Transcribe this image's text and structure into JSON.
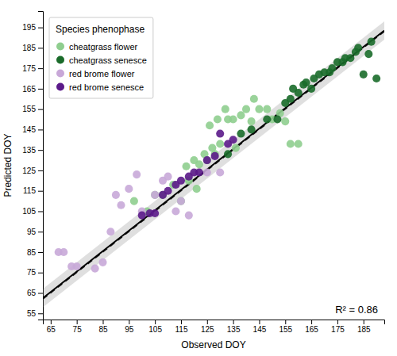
{
  "chart_data": {
    "type": "scatter",
    "title": "Species phenophase",
    "xlabel": "Observed DOY",
    "ylabel": "Predicted DOY",
    "xlim": [
      62,
      193
    ],
    "ylim": [
      52,
      203
    ],
    "xticks": [
      65,
      75,
      85,
      95,
      105,
      115,
      125,
      135,
      145,
      155,
      165,
      175,
      185
    ],
    "yticks": [
      55,
      65,
      75,
      85,
      95,
      105,
      115,
      125,
      135,
      145,
      155,
      165,
      175,
      185,
      195
    ],
    "grid": false,
    "legend": "upper left",
    "annotations": [
      "R² = 0.86"
    ],
    "series": [
      {
        "name": "cheatgrass flower",
        "type": "scatter",
        "marker": "circle",
        "color": "#8fce8f",
        "x": [
          97,
          102,
          105,
          108,
          112,
          115,
          117,
          118,
          120,
          121,
          122,
          124,
          125,
          126,
          127,
          128,
          129,
          130,
          132,
          133,
          135,
          136,
          138,
          140,
          142,
          143,
          145,
          148,
          150,
          153,
          155,
          157,
          160
        ],
        "values": [
          110,
          105,
          113,
          113,
          118,
          110,
          127,
          120,
          130,
          116,
          128,
          133,
          130,
          147,
          136,
          133,
          150,
          138,
          155,
          150,
          150,
          136,
          152,
          155,
          149,
          160,
          155,
          155,
          150,
          153,
          149,
          138,
          138
        ]
      },
      {
        "name": "cheatgrass senesce",
        "type": "scatter",
        "marker": "circle",
        "color": "#1a6b2a",
        "x": [
          133,
          138,
          142,
          148,
          152,
          155,
          157,
          158,
          160,
          162,
          163,
          165,
          166,
          168,
          170,
          172,
          173,
          175,
          177,
          178,
          180,
          182,
          183,
          185,
          187,
          188,
          190
        ],
        "values": [
          133,
          143,
          145,
          150,
          150,
          158,
          160,
          165,
          163,
          167,
          168,
          165,
          170,
          172,
          173,
          173,
          175,
          178,
          178,
          180,
          180,
          183,
          185,
          172,
          182,
          188,
          170
        ]
      },
      {
        "name": "red brome flower",
        "type": "scatter",
        "marker": "circle",
        "color": "#c8a8d8",
        "x": [
          68,
          70,
          73,
          75,
          82,
          85,
          88,
          90,
          92,
          95,
          98,
          100,
          105,
          108,
          110,
          113,
          115,
          118,
          125,
          130
        ],
        "values": [
          85,
          85,
          78,
          78,
          77,
          80,
          95,
          113,
          108,
          116,
          123,
          105,
          113,
          120,
          122,
          105,
          110,
          103,
          124,
          124
        ]
      },
      {
        "name": "red brome senesce",
        "type": "scatter",
        "marker": "circle",
        "color": "#5b1a8a",
        "x": [
          100,
          103,
          105,
          108,
          110,
          113,
          115,
          118,
          120,
          122,
          125,
          128,
          130,
          133,
          135
        ],
        "values": [
          103,
          104,
          104,
          113,
          115,
          118,
          120,
          122,
          124,
          124,
          130,
          132,
          143,
          138,
          140
        ]
      },
      {
        "type": "line",
        "line_style": "dashed",
        "color": "#000000",
        "x": [
          62,
          193
        ],
        "values": [
          62,
          193
        ]
      },
      {
        "type": "area",
        "color": "#808080",
        "x": [
          62,
          193
        ],
        "lower": [
          58,
          189
        ],
        "upper": [
          67,
          198
        ]
      },
      {
        "type": "line",
        "line_style": "solid",
        "color": "#000000",
        "x": [
          62,
          193
        ],
        "values": [
          62.5,
          193.5
        ]
      }
    ]
  }
}
